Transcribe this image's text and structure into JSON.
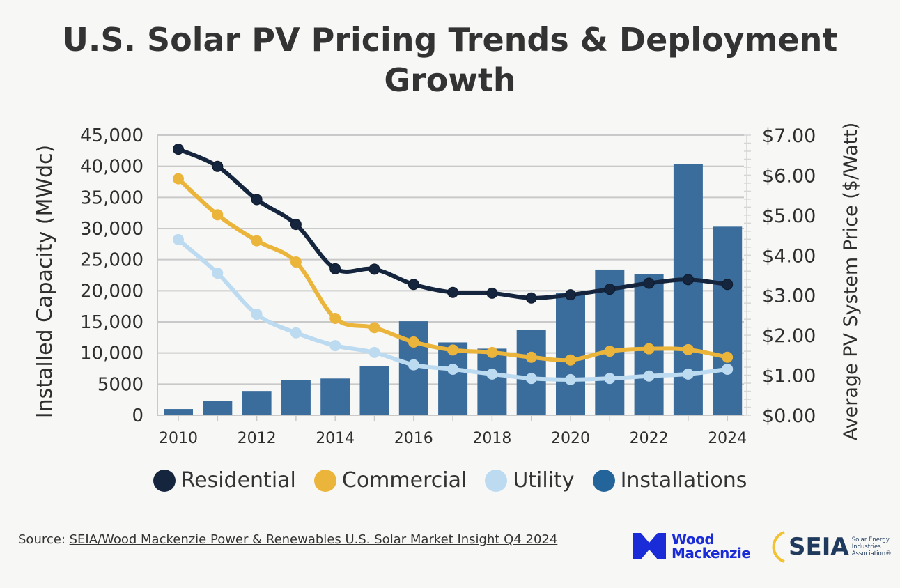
{
  "title": "U.S. Solar PV Pricing Trends & Deployment Growth",
  "chart_data": {
    "type": "bar+line",
    "title": "U.S. Solar PV Pricing Trends & Deployment Growth",
    "x": [
      2010,
      2011,
      2012,
      2013,
      2014,
      2015,
      2016,
      2017,
      2018,
      2019,
      2020,
      2021,
      2022,
      2023,
      2024
    ],
    "x_ticks": [
      "2010",
      "2012",
      "2014",
      "2016",
      "2018",
      "2020",
      "2022",
      "2024"
    ],
    "y_left": {
      "label": "Installed Capacity (MWdc)",
      "ylim": [
        0,
        45000
      ],
      "ticks": [
        "0",
        "5000",
        "10,000",
        "15,000",
        "20,000",
        "25,000",
        "30,000",
        "35,000",
        "40,000",
        "45,000"
      ]
    },
    "y_right": {
      "label": "Average PV System Price ($/Watt)",
      "ylim": [
        0,
        7
      ],
      "ticks": [
        "$0.00",
        "$1.00",
        "$2.00",
        "$3.00",
        "$4.00",
        "$5.00",
        "$6.00",
        "$7.00"
      ]
    },
    "grid": true,
    "legend_position": "bottom",
    "series": [
      {
        "name": "Residential",
        "type": "line",
        "axis": "right",
        "color": "#14253d",
        "values": [
          6.65,
          6.22,
          5.39,
          4.77,
          3.66,
          3.65,
          3.27,
          3.07,
          3.05,
          2.93,
          3.01,
          3.15,
          3.3,
          3.39,
          3.27
        ]
      },
      {
        "name": "Commercial",
        "type": "line",
        "axis": "right",
        "color": "#ebb53c",
        "values": [
          5.91,
          5.01,
          4.36,
          3.83,
          2.42,
          2.19,
          1.83,
          1.63,
          1.57,
          1.45,
          1.38,
          1.6,
          1.66,
          1.64,
          1.45
        ]
      },
      {
        "name": "Utility",
        "type": "line",
        "axis": "right",
        "color": "#bcdaf0",
        "values": [
          4.39,
          3.55,
          2.52,
          2.06,
          1.74,
          1.57,
          1.26,
          1.15,
          1.03,
          0.92,
          0.89,
          0.92,
          0.98,
          1.03,
          1.15
        ]
      },
      {
        "name": "Installations",
        "type": "bar",
        "axis": "left",
        "color": "#3a6c9c",
        "values": [
          1000,
          2300,
          3900,
          5600,
          5900,
          7900,
          15100,
          11700,
          10700,
          13700,
          19700,
          23400,
          22700,
          40300,
          30300
        ]
      }
    ]
  },
  "source": {
    "prefix": "Source: ",
    "link_text": "SEIA/Wood Mackenzie Power & Renewables U.S. Solar Market Insight Q4 2024"
  },
  "logos": {
    "woodmac": "Wood Mackenzie",
    "woodmac_color": "#1a2bd8",
    "seia": "SEIA",
    "seia_tagline": "Solar Energy Industries Association®"
  }
}
